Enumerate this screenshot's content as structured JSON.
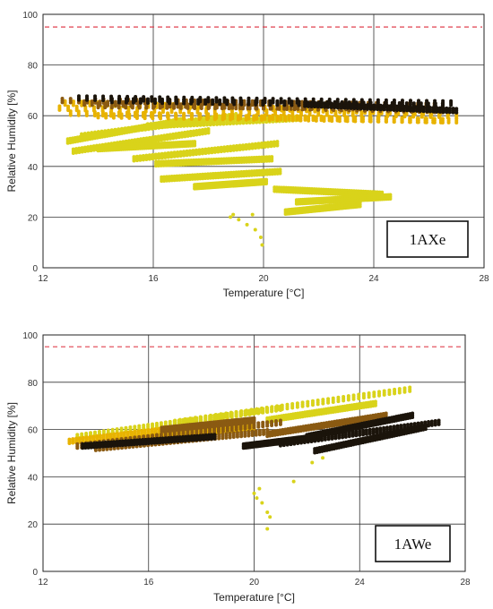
{
  "chart_data": [
    {
      "type": "scatter",
      "xlabel": "Temperature [°C]",
      "ylabel": "Relative Humidity [%]",
      "xlim": [
        12,
        28
      ],
      "ylim": [
        0,
        100
      ],
      "xticks": [
        12,
        16,
        20,
        24,
        28
      ],
      "yticks": [
        0,
        20,
        40,
        60,
        80,
        100
      ],
      "grid": true,
      "reference_line": {
        "y": 95,
        "style": "dashed",
        "color": "#e0404f"
      },
      "annotation": "1AXe",
      "series_colors": [
        "#d9d31a",
        "#e8b300",
        "#8a5a12",
        "#1b140b"
      ],
      "series": [
        {
          "color": "#d9d31a",
          "segments": [
            [
              12.9,
              50,
              17,
              58
            ],
            [
              13.1,
              46,
              18,
              54
            ],
            [
              13.4,
              52,
              19,
              60
            ],
            [
              14,
              47,
              17.5,
              49
            ],
            [
              15.3,
              43,
              20.5,
              49
            ],
            [
              16.1,
              41,
              20.3,
              43
            ],
            [
              16.3,
              35,
              20.6,
              38
            ],
            [
              17.5,
              32,
              20.1,
              34
            ],
            [
              20.4,
              31,
              24.3,
              29
            ],
            [
              21.2,
              26,
              24.6,
              28
            ],
            [
              20.8,
              22,
              23.5,
              25
            ],
            [
              15.8,
              56,
              21.3,
              59
            ]
          ],
          "points": [
            [
              18.8,
              20
            ],
            [
              19.1,
              19
            ],
            [
              19.4,
              17
            ],
            [
              19.7,
              15
            ],
            [
              19.9,
              12
            ],
            [
              19.95,
              9
            ],
            [
              19.6,
              21
            ],
            [
              18.9,
              21
            ]
          ]
        },
        {
          "color": "#e8b300",
          "segments": [
            [
              12.6,
              63,
              27,
              60
            ],
            [
              13,
              61,
              26.5,
              58
            ],
            [
              14,
              60,
              27,
              58
            ],
            [
              12.8,
              65,
              26.7,
              61
            ]
          ],
          "points": []
        },
        {
          "color": "#8a5a12",
          "segments": [
            [
              12.7,
              66,
              26.5,
              64
            ],
            [
              13.5,
              65,
              26.5,
              62
            ],
            [
              14,
              64,
              25.5,
              63
            ]
          ],
          "points": []
        },
        {
          "color": "#1b140b",
          "segments": [
            [
              13.3,
              67,
              26.8,
              65
            ],
            [
              14.5,
              66,
              26.5,
              64
            ],
            [
              21.5,
              64.5,
              27,
              62
            ]
          ],
          "points": []
        }
      ]
    },
    {
      "type": "scatter",
      "xlabel": "Temperature [°C]",
      "ylabel": "Relative Humidity [%]",
      "xlim": [
        12,
        28
      ],
      "ylim": [
        0,
        100
      ],
      "xticks": [
        12,
        16,
        20,
        24,
        28
      ],
      "yticks": [
        0,
        20,
        40,
        60,
        80,
        100
      ],
      "grid": true,
      "reference_line": {
        "y": 95,
        "style": "dashed",
        "color": "#e0404f"
      },
      "annotation": "1AWe",
      "series_colors": [
        "#d9d31a",
        "#e8b300",
        "#8a5a12",
        "#1b140b"
      ],
      "series": [
        {
          "color": "#d9d31a",
          "segments": [
            [
              13.3,
              57,
              21,
              69
            ],
            [
              17,
              63,
              25.9,
              77
            ],
            [
              20.5,
              64,
              24.6,
              71
            ]
          ],
          "points": [
            [
              20,
              33
            ],
            [
              20.1,
              31
            ],
            [
              20.3,
              29
            ],
            [
              20.5,
              25
            ],
            [
              20.6,
              23
            ],
            [
              20.5,
              18
            ],
            [
              20.2,
              35
            ],
            [
              21.5,
              38
            ],
            [
              22.2,
              46
            ],
            [
              22.6,
              48
            ],
            [
              22.8,
              52
            ]
          ]
        },
        {
          "color": "#e8b300",
          "segments": [
            [
              13,
              55,
              19,
              63
            ],
            [
              14.5,
              55,
              20,
              61
            ]
          ],
          "points": []
        },
        {
          "color": "#8a5a12",
          "segments": [
            [
              13.3,
              53,
              21,
              63
            ],
            [
              14,
              52,
              20.5,
              59
            ],
            [
              20.5,
              58,
              25,
              66
            ],
            [
              16.5,
              60,
              20,
              64
            ]
          ],
          "points": []
        },
        {
          "color": "#1b140b",
          "segments": [
            [
              13.5,
              53,
              18.5,
              57
            ],
            [
              21,
              54,
              27,
              63
            ],
            [
              22.3,
              51,
              26.5,
              61
            ],
            [
              19.6,
              53,
              22.5,
              57
            ],
            [
              22,
              57,
              26,
              66
            ]
          ],
          "points": []
        }
      ]
    }
  ]
}
